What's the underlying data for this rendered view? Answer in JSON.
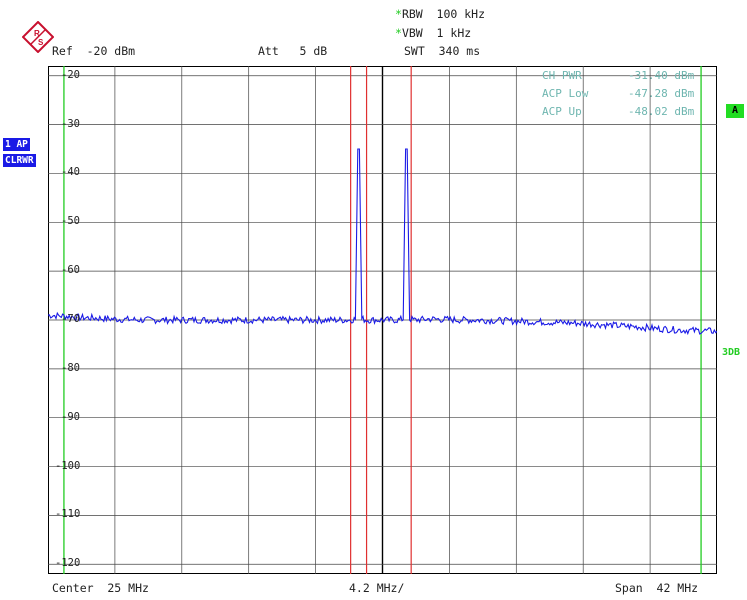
{
  "header": {
    "rbw": "RBW  100 kHz",
    "vbw": "VBW  1 kHz",
    "swt": "SWT  340 ms",
    "ref": "Ref  -20 dBm",
    "att": "Att   5 dB"
  },
  "side_tags": {
    "trace": "1 AP",
    "mode": "CLRWR",
    "marker_a": "A",
    "db3": "3DB"
  },
  "readouts": [
    {
      "label": "CH PWR",
      "value": "-31.40 dBm"
    },
    {
      "label": "ACP Low",
      "value": "-47.28 dBm"
    },
    {
      "label": "ACP Up",
      "value": "-48.02 dBm"
    }
  ],
  "footer": {
    "center": "Center  25 MHz",
    "div": "4.2 MHz/",
    "span": "Span  42 MHz"
  },
  "colors": {
    "trace": "#1a1ae6",
    "channel_lines": "#e03030",
    "limit_lines": "#22cc22",
    "grid": "#000000"
  },
  "chart_data": {
    "type": "line",
    "xlabel": "",
    "ylabel": "",
    "x_center_mhz": 25,
    "x_span_mhz": 42,
    "xlim": [
      4,
      46
    ],
    "ylim": [
      -122,
      -18
    ],
    "y_tick_labels": [
      "-20",
      "-30",
      "-40",
      "-50",
      "-60",
      "-70",
      "-80",
      "-90",
      "-100",
      "-110",
      "-120"
    ],
    "grid": true,
    "channel_lines_mhz": [
      23.0,
      24.0,
      26.8
    ],
    "limit_lines_mhz": [
      5.0,
      45.0
    ],
    "series": [
      {
        "x": [
          4,
          5,
          6,
          7,
          8,
          9,
          10,
          11,
          12,
          13,
          14,
          15,
          16,
          17,
          18,
          19,
          20,
          21,
          22,
          23,
          23.3,
          23.45,
          23.55,
          23.7,
          24,
          24.5,
          25,
          25.5,
          26,
          26.3,
          26.45,
          26.55,
          26.7,
          27,
          28,
          29,
          30,
          31,
          32,
          33,
          34,
          35,
          36,
          37,
          38,
          39,
          40,
          41,
          42,
          43,
          44,
          45,
          46
        ],
        "y": [
          -69.0,
          -69.2,
          -69.5,
          -69.6,
          -69.8,
          -69.9,
          -70.0,
          -70.0,
          -70.0,
          -70.0,
          -70.0,
          -70.0,
          -70.0,
          -70.0,
          -70.0,
          -70.0,
          -70.0,
          -70.0,
          -70.0,
          -70.0,
          -69.8,
          -35.0,
          -35.0,
          -69.8,
          -70.0,
          -70.0,
          -70.0,
          -70.0,
          -70.0,
          -69.8,
          -35.0,
          -35.0,
          -69.8,
          -70.0,
          -69.8,
          -69.9,
          -70.0,
          -70.0,
          -70.1,
          -70.2,
          -70.3,
          -70.4,
          -70.5,
          -70.6,
          -70.8,
          -71.0,
          -71.2,
          -71.4,
          -71.7,
          -71.9,
          -72.1,
          -72.2,
          -72.3
        ]
      }
    ]
  }
}
